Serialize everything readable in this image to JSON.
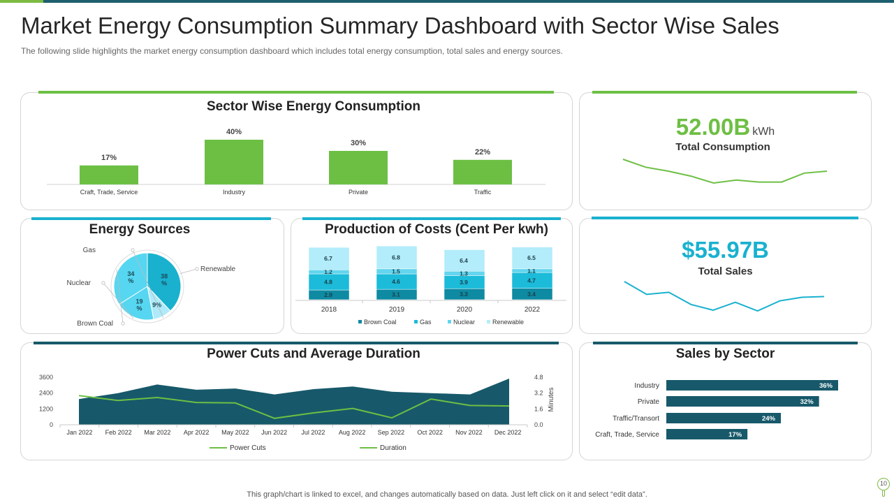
{
  "header": {
    "title": "Market Energy Consumption Summary Dashboard with Sector Wise Sales",
    "subtitle": "The following slide highlights the market energy consumption dashboard which includes total energy consumption, total sales and energy sources."
  },
  "colors": {
    "green": "#6dbf44",
    "teal_dark": "#17596a",
    "cyan": "#1ab1cf",
    "light_cyan": "#aeeaf9",
    "mid_cyan": "#56d6f1",
    "brown_coal": "#0e8aa2",
    "gas": "#1cbbd9",
    "nuclear": "#63d5ee",
    "renewable": "#b3ecfa"
  },
  "kpis": {
    "consumption": {
      "value": "52.00B",
      "unit": "kWh",
      "label": "Total Consumption",
      "trend": [
        100,
        92,
        88,
        83,
        76,
        79,
        77,
        77,
        86,
        88
      ]
    },
    "sales": {
      "value": "$55.97B",
      "label": "Total Sales",
      "trend": [
        100,
        82,
        85,
        68,
        60,
        71,
        59,
        73,
        78,
        79
      ]
    }
  },
  "chart_data": [
    {
      "id": "sector-energy",
      "type": "bar",
      "title": "Sector Wise Energy Consumption",
      "categories": [
        "Craft, Trade, Service",
        "Industry",
        "Private",
        "Traffic"
      ],
      "values": [
        17,
        40,
        30,
        22
      ],
      "value_labels": [
        "17%",
        "40%",
        "30%",
        "22%"
      ]
    },
    {
      "id": "energy-sources",
      "type": "pie",
      "title": "Energy Sources",
      "labels": [
        "Renewable",
        "Gas",
        "Nuclear",
        "Brown Coal"
      ],
      "values": [
        38,
        9,
        19,
        34
      ],
      "value_labels": [
        "38 %",
        "9%",
        "19 %",
        "34 %"
      ]
    },
    {
      "id": "production-costs",
      "type": "bar",
      "stacked": true,
      "title": "Production of Costs (Cent Per kwh)",
      "categories": [
        "2018",
        "2019",
        "2020",
        "2022"
      ],
      "series": [
        {
          "name": "Brown Coal",
          "values": [
            2.9,
            3.1,
            3.3,
            3.4
          ]
        },
        {
          "name": "Gas",
          "values": [
            4.8,
            4.6,
            3.9,
            4.7
          ]
        },
        {
          "name": "Nuclear",
          "values": [
            1.2,
            1.5,
            1.3,
            1.1
          ]
        },
        {
          "name": "Renewable",
          "values": [
            6.7,
            6.8,
            6.4,
            6.5
          ]
        }
      ],
      "legend": "bottom"
    },
    {
      "id": "power-cuts",
      "type": "area",
      "title": "Power Cuts and Average Duration",
      "categories": [
        "Jan 2022",
        "Feb 2022",
        "Mar 2022",
        "Apr 2022",
        "May 2022",
        "Jun 2022",
        "Jul 2022",
        "Aug 2022",
        "Sep 2022",
        "Oct 2022",
        "Nov 2022",
        "Dec 2022"
      ],
      "series": [
        {
          "name": "Power Cuts",
          "type": "area",
          "axis": "left",
          "values": [
            1950,
            2400,
            3050,
            2650,
            2750,
            2300,
            2700,
            2900,
            2500,
            2400,
            2300,
            3500
          ]
        },
        {
          "name": "Duration",
          "type": "line",
          "axis": "right",
          "values": [
            2.95,
            2.45,
            2.75,
            2.25,
            2.2,
            0.65,
            1.2,
            1.65,
            0.7,
            2.6,
            1.95,
            1.9
          ]
        }
      ],
      "y_left_ticks": [
        "0",
        "1200",
        "2400",
        "3600"
      ],
      "y_left_range": [
        0,
        3600
      ],
      "y_right_ticks": [
        "0.0",
        "1.6",
        "3.2",
        "4.8"
      ],
      "y_right_range": [
        0,
        4.8
      ],
      "y_right_label": "Minutes",
      "legend": "bottom"
    },
    {
      "id": "sales-by-sector",
      "type": "bar",
      "orientation": "horizontal",
      "title": "Sales by Sector",
      "categories": [
        "Industry",
        "Private",
        "Traffic/Transort",
        "Craft, Trade, Service"
      ],
      "values": [
        36,
        32,
        24,
        17
      ],
      "value_labels": [
        "36%",
        "32%",
        "24%",
        "17%"
      ]
    }
  ],
  "footer": {
    "note": "This graph/chart is linked to excel, and changes automatically based on data. Just left click on it and select “edit data”.",
    "page_number": "10"
  }
}
